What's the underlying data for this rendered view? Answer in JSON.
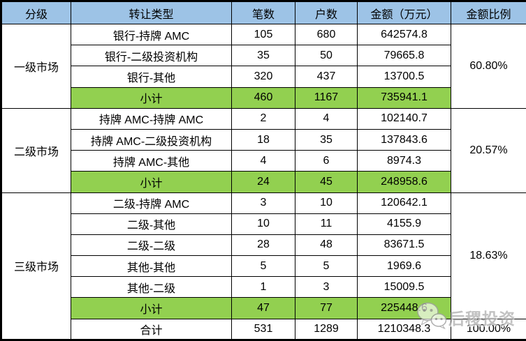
{
  "table": {
    "headers": [
      "分级",
      "转让类型",
      "笔数",
      "户数",
      "金额（万元）",
      "金额比例"
    ],
    "groups": [
      {
        "level": "一级市场",
        "ratio": "60.80%",
        "rows": [
          {
            "type": "银行-持牌 AMC",
            "count": "105",
            "households": "680",
            "amount": "642574.8"
          },
          {
            "type": "银行-二级投资机构",
            "count": "35",
            "households": "50",
            "amount": "79665.8"
          },
          {
            "type": "银行-其他",
            "count": "320",
            "households": "437",
            "amount": "13700.5"
          }
        ],
        "subtotal": {
          "label": "小计",
          "count": "460",
          "households": "1167",
          "amount": "735941.1"
        }
      },
      {
        "level": "二级市场",
        "ratio": "20.57%",
        "rows": [
          {
            "type": "持牌 AMC-持牌 AMC",
            "count": "2",
            "households": "4",
            "amount": "102140.7"
          },
          {
            "type": "持牌 AMC-二级投资机构",
            "count": "18",
            "households": "35",
            "amount": "137843.6"
          },
          {
            "type": "持牌 AMC-其他",
            "count": "4",
            "households": "6",
            "amount": "8974.3"
          }
        ],
        "subtotal": {
          "label": "小计",
          "count": "24",
          "households": "45",
          "amount": "248958.6"
        }
      },
      {
        "level": "三级市场",
        "ratio": "18.63%",
        "rows": [
          {
            "type": "二级-持牌 AMC",
            "count": "3",
            "households": "10",
            "amount": "120642.1"
          },
          {
            "type": "二级-其他",
            "count": "10",
            "households": "11",
            "amount": "4155.9"
          },
          {
            "type": "二级-二级",
            "count": "28",
            "households": "48",
            "amount": "83671.5"
          },
          {
            "type": "其他-其他",
            "count": "5",
            "households": "5",
            "amount": "1969.6"
          },
          {
            "type": "其他-二级",
            "count": "1",
            "households": "3",
            "amount": "15009.5"
          }
        ],
        "subtotal": {
          "label": "小计",
          "count": "47",
          "households": "77",
          "amount": "225448.6"
        }
      }
    ],
    "total": {
      "label": "合计",
      "count": "531",
      "households": "1289",
      "amount": "1210348.3",
      "ratio": "100.00%"
    }
  },
  "chart_data": {
    "type": "table",
    "columns": [
      "分级",
      "转让类型",
      "笔数",
      "户数",
      "金额（万元）",
      "金额比例"
    ],
    "rows": [
      [
        "一级市场",
        "银行-持牌 AMC",
        105,
        680,
        642574.8,
        "60.80%"
      ],
      [
        "一级市场",
        "银行-二级投资机构",
        35,
        50,
        79665.8,
        "60.80%"
      ],
      [
        "一级市场",
        "银行-其他",
        320,
        437,
        13700.5,
        "60.80%"
      ],
      [
        "一级市场",
        "小计",
        460,
        1167,
        735941.1,
        "60.80%"
      ],
      [
        "二级市场",
        "持牌 AMC-持牌 AMC",
        2,
        4,
        102140.7,
        "20.57%"
      ],
      [
        "二级市场",
        "持牌 AMC-二级投资机构",
        18,
        35,
        137843.6,
        "20.57%"
      ],
      [
        "二级市场",
        "持牌 AMC-其他",
        4,
        6,
        8974.3,
        "20.57%"
      ],
      [
        "二级市场",
        "小计",
        24,
        45,
        248958.6,
        "20.57%"
      ],
      [
        "三级市场",
        "二级-持牌 AMC",
        3,
        10,
        120642.1,
        "18.63%"
      ],
      [
        "三级市场",
        "二级-其他",
        10,
        11,
        4155.9,
        "18.63%"
      ],
      [
        "三级市场",
        "二级-二级",
        28,
        48,
        83671.5,
        "18.63%"
      ],
      [
        "三级市场",
        "其他-其他",
        5,
        5,
        1969.6,
        "18.63%"
      ],
      [
        "三级市场",
        "其他-二级",
        1,
        3,
        15009.5,
        "18.63%"
      ],
      [
        "三级市场",
        "小计",
        47,
        77,
        225448.6,
        "18.63%"
      ],
      [
        "",
        "合计",
        531,
        1289,
        1210348.3,
        "100.00%"
      ]
    ]
  },
  "watermark": {
    "text": "后稷投资",
    "icon": "wechat-icon"
  },
  "colors": {
    "header_bg": "#9DC3E6",
    "subtotal_bg": "#92D050",
    "border": "#000000",
    "text": "#000000"
  }
}
